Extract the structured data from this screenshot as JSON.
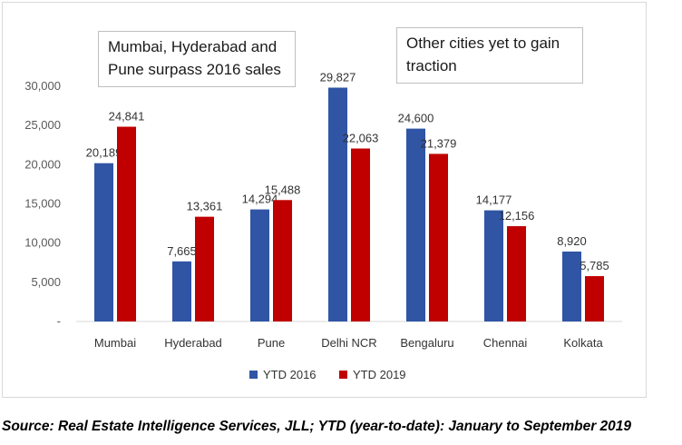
{
  "chart_data": {
    "type": "bar",
    "categories": [
      "Mumbai",
      "Hyderabad",
      "Pune",
      "Delhi NCR",
      "Bengaluru",
      "Chennai",
      "Kolkata"
    ],
    "series": [
      {
        "name": "YTD 2016",
        "color": "#2f55a4",
        "values": [
          20189,
          7665,
          14294,
          29827,
          24600,
          14177,
          8920
        ],
        "labels": [
          "20,189",
          "7,665",
          "14,294",
          "29,827",
          "24,600",
          "14,177",
          "8,920"
        ]
      },
      {
        "name": "YTD 2019",
        "color": "#c00000",
        "values": [
          24841,
          13361,
          15488,
          22063,
          21379,
          12156,
          5785
        ],
        "labels": [
          "24,841",
          "13,361",
          "15,488",
          "22,063",
          "21,379",
          "12,156",
          "5,785"
        ]
      }
    ],
    "yticks": [
      0,
      5000,
      10000,
      15000,
      20000,
      25000,
      30000
    ],
    "ytick_labels": [
      "-",
      "5,000",
      "10,000",
      "15,000",
      "20,000",
      "25,000",
      "30,000"
    ],
    "ylim": [
      0,
      30000
    ],
    "grid": false,
    "legend": "bottom",
    "annotations": [
      "Mumbai, Hyderabad and Pune surpass 2016 sales",
      "Other cities yet to gain traction"
    ]
  },
  "source_note": "Source: Real Estate Intelligence Services, JLL; YTD (year-to-date): January to September 2019"
}
